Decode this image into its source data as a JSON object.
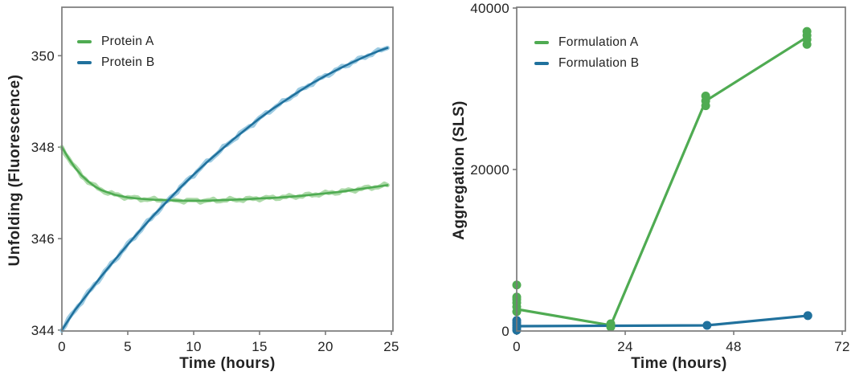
{
  "figure": {
    "background": "#ffffff",
    "frame_color": "#7a7a7a",
    "tick_color": "#7a7a7a",
    "text_color": "#222222",
    "green": "#4fab52",
    "blue": "#20719d"
  },
  "chart_data": [
    {
      "id": "unfolding-chart",
      "type": "line",
      "title": "",
      "xlabel": "Time (hours)",
      "ylabel": "Unfolding (Fluorescence)",
      "xlim": [
        0,
        25.12
      ],
      "ylim": [
        343.98,
        351.06
      ],
      "xticks": [
        0,
        5,
        10,
        15,
        20,
        25
      ],
      "yticks": [
        344,
        346,
        348,
        350
      ],
      "grid": false,
      "legend_position": "upper left",
      "series": [
        {
          "name": "Protein A",
          "color": "#4fab52",
          "band_color": "#9fd39a",
          "x": [
            0,
            0.5,
            1,
            1.5,
            2,
            2.5,
            3,
            4,
            5,
            6,
            7,
            8,
            9,
            10,
            11,
            12,
            13,
            14,
            15,
            16,
            17,
            18,
            19,
            20,
            21,
            22,
            23,
            24,
            24.7
          ],
          "y": [
            348.0,
            347.76,
            347.55,
            347.38,
            347.25,
            347.14,
            347.06,
            346.96,
            346.9,
            346.87,
            346.85,
            346.84,
            346.83,
            346.83,
            346.83,
            346.84,
            346.85,
            346.86,
            346.88,
            346.89,
            346.91,
            346.93,
            346.96,
            346.99,
            347.02,
            347.06,
            347.1,
            347.14,
            347.17
          ]
        },
        {
          "name": "Protein B",
          "color": "#20719d",
          "band_color": "#8cc2dd",
          "x": [
            0,
            1,
            2,
            3,
            4,
            5,
            6,
            7,
            8,
            9,
            10,
            11,
            12,
            13,
            14,
            15,
            16,
            17,
            18,
            19,
            20,
            21,
            22,
            23,
            24,
            24.7
          ],
          "y": [
            344.0,
            344.44,
            344.81,
            345.18,
            345.53,
            345.87,
            346.2,
            346.52,
            346.82,
            347.12,
            347.4,
            347.67,
            347.92,
            348.17,
            348.4,
            348.63,
            348.84,
            349.03,
            349.22,
            349.4,
            349.56,
            349.71,
            349.85,
            349.98,
            350.1,
            350.17
          ]
        }
      ]
    },
    {
      "id": "aggregation-chart",
      "type": "scatter-line",
      "title": "",
      "xlabel": "Time (hours)",
      "ylabel": "Aggregation (SLS)",
      "xlim": [
        0,
        72.7
      ],
      "ylim": [
        0,
        40100
      ],
      "xticks": [
        0,
        24,
        48,
        72
      ],
      "yticks": [
        0,
        20000,
        40000
      ],
      "grid": false,
      "legend_position": "upper left",
      "series": [
        {
          "name": "Formulation A",
          "color": "#4fab52",
          "line_x": [
            0,
            20.8,
            41.8,
            64.2
          ],
          "line_y": [
            2700,
            700,
            28500,
            36400
          ],
          "scatter_x": [
            0,
            0,
            0,
            0,
            0,
            0,
            20.8,
            20.8,
            20.8,
            41.8,
            41.8,
            41.8,
            64.2,
            64.2,
            64.2,
            64.2
          ],
          "scatter_y": [
            2400,
            3000,
            3500,
            3900,
            4200,
            5700,
            500,
            700,
            900,
            27900,
            28500,
            29100,
            35500,
            36100,
            36600,
            37100
          ]
        },
        {
          "name": "Formulation B",
          "color": "#20719d",
          "line_x": [
            0,
            42.1,
            64.4
          ],
          "line_y": [
            600,
            700,
            1900
          ],
          "scatter_x": [
            0,
            0,
            0,
            0,
            0,
            42.1,
            64.4
          ],
          "scatter_y": [
            100,
            400,
            700,
            1000,
            1300,
            700,
            1900
          ]
        }
      ]
    }
  ]
}
